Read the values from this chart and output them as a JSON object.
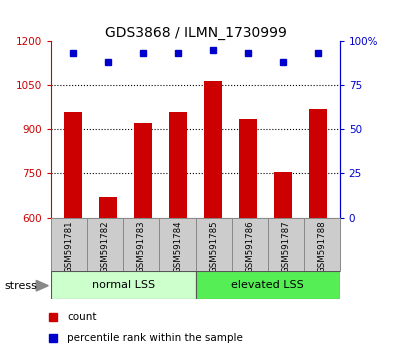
{
  "title": "GDS3868 / ILMN_1730999",
  "samples": [
    "GSM591781",
    "GSM591782",
    "GSM591783",
    "GSM591784",
    "GSM591785",
    "GSM591786",
    "GSM591787",
    "GSM591788"
  ],
  "bar_values": [
    960,
    670,
    920,
    960,
    1065,
    935,
    755,
    970
  ],
  "percentile_values": [
    93,
    88,
    93,
    93,
    95,
    93,
    88,
    93
  ],
  "ylim_left": [
    600,
    1200
  ],
  "ylim_right": [
    0,
    100
  ],
  "yticks_left": [
    600,
    750,
    900,
    1050,
    1200
  ],
  "yticks_right": [
    0,
    25,
    50,
    75,
    100
  ],
  "bar_color": "#cc0000",
  "percentile_color": "#0000cc",
  "group1_label": "normal LSS",
  "group2_label": "elevated LSS",
  "group1_color": "#ccffcc",
  "group2_color": "#55ee55",
  "left_axis_color": "#cc0000",
  "right_axis_color": "#0000cc",
  "legend_count_label": "count",
  "legend_pct_label": "percentile rank within the sample",
  "stress_label": "stress",
  "bar_width": 0.5,
  "label_bg_color": "#cccccc",
  "label_edge_color": "#888888"
}
